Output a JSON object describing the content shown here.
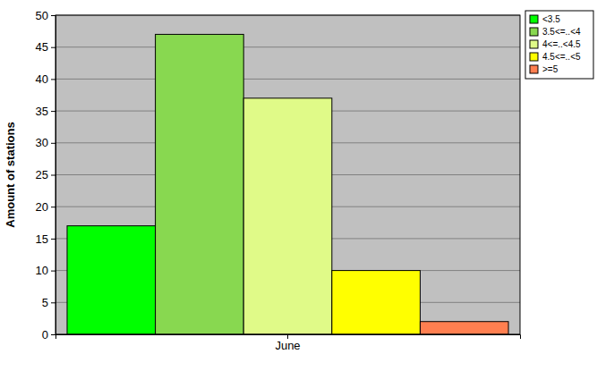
{
  "chart_data": {
    "type": "bar",
    "y_label": "Amount of stations",
    "categories": [
      "June"
    ],
    "series": [
      {
        "name": "<3.5",
        "color": "#00ff00",
        "values": [
          17
        ]
      },
      {
        "name": "3.5<=..<4",
        "color": "#88d850",
        "values": [
          47
        ]
      },
      {
        "name": "4<=..<4.5",
        "color": "#e0fa88",
        "values": [
          37
        ]
      },
      {
        "name": "4.5<=..<5",
        "color": "#ffff00",
        "values": [
          10
        ]
      },
      {
        "name": ">=5",
        "color": "#ff7f50",
        "values": [
          2
        ]
      }
    ],
    "ylim": [
      0,
      50
    ],
    "yticks": [
      0,
      5,
      10,
      15,
      20,
      25,
      30,
      35,
      40,
      45,
      50
    ],
    "grid": true,
    "legend": "top-right"
  }
}
